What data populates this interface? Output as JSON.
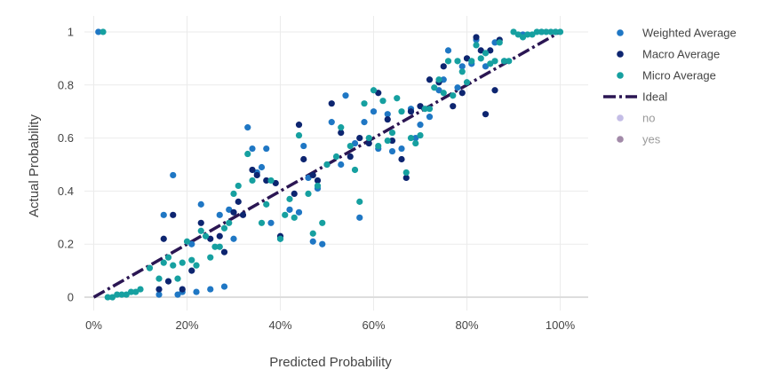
{
  "chart_data": {
    "type": "scatter",
    "xlabel": "Predicted Probability",
    "ylabel": "Actual Probability",
    "xlim": [
      -0.02,
      1.06
    ],
    "ylim": [
      -0.05,
      1.06
    ],
    "x_ticks": [
      0,
      0.2,
      0.4,
      0.6,
      0.8,
      1.0
    ],
    "x_tick_labels": [
      "0%",
      "20%",
      "40%",
      "60%",
      "80%",
      "100%"
    ],
    "y_ticks": [
      0,
      0.2,
      0.4,
      0.6,
      0.8,
      1.0
    ],
    "y_tick_labels": [
      "0",
      "0.2",
      "0.4",
      "0.6",
      "0.8",
      "1"
    ],
    "grid": true,
    "legend_position": "right",
    "series": [
      {
        "name": "Weighted Average",
        "color": "#1f77c4",
        "points": [
          [
            0.01,
            1.0
          ],
          [
            0.14,
            0.01
          ],
          [
            0.15,
            0.31
          ],
          [
            0.17,
            0.46
          ],
          [
            0.18,
            0.01
          ],
          [
            0.19,
            0.02
          ],
          [
            0.21,
            0.2
          ],
          [
            0.22,
            0.02
          ],
          [
            0.23,
            0.35
          ],
          [
            0.25,
            0.03
          ],
          [
            0.27,
            0.31
          ],
          [
            0.28,
            0.04
          ],
          [
            0.29,
            0.33
          ],
          [
            0.3,
            0.22
          ],
          [
            0.33,
            0.64
          ],
          [
            0.34,
            0.56
          ],
          [
            0.35,
            0.47
          ],
          [
            0.36,
            0.49
          ],
          [
            0.37,
            0.56
          ],
          [
            0.38,
            0.28
          ],
          [
            0.4,
            0.22
          ],
          [
            0.42,
            0.33
          ],
          [
            0.44,
            0.32
          ],
          [
            0.45,
            0.57
          ],
          [
            0.46,
            0.45
          ],
          [
            0.47,
            0.21
          ],
          [
            0.48,
            0.41
          ],
          [
            0.49,
            0.2
          ],
          [
            0.51,
            0.66
          ],
          [
            0.53,
            0.5
          ],
          [
            0.54,
            0.76
          ],
          [
            0.56,
            0.58
          ],
          [
            0.57,
            0.3
          ],
          [
            0.58,
            0.66
          ],
          [
            0.6,
            0.7
          ],
          [
            0.61,
            0.56
          ],
          [
            0.63,
            0.69
          ],
          [
            0.64,
            0.55
          ],
          [
            0.66,
            0.56
          ],
          [
            0.68,
            0.71
          ],
          [
            0.69,
            0.6
          ],
          [
            0.7,
            0.65
          ],
          [
            0.72,
            0.68
          ],
          [
            0.74,
            0.78
          ],
          [
            0.75,
            0.82
          ],
          [
            0.76,
            0.93
          ],
          [
            0.78,
            0.79
          ],
          [
            0.79,
            0.87
          ],
          [
            0.81,
            0.88
          ],
          [
            0.82,
            0.97
          ],
          [
            0.84,
            0.87
          ],
          [
            0.86,
            0.96
          ],
          [
            0.88,
            0.89
          ],
          [
            0.92,
            0.99
          ],
          [
            0.96,
            1.0
          ],
          [
            0.99,
            1.0
          ]
        ]
      },
      {
        "name": "Macro Average",
        "color": "#0d2570",
        "points": [
          [
            0.14,
            0.03
          ],
          [
            0.15,
            0.22
          ],
          [
            0.16,
            0.06
          ],
          [
            0.17,
            0.31
          ],
          [
            0.19,
            0.03
          ],
          [
            0.21,
            0.1
          ],
          [
            0.23,
            0.28
          ],
          [
            0.25,
            0.22
          ],
          [
            0.27,
            0.23
          ],
          [
            0.28,
            0.17
          ],
          [
            0.3,
            0.32
          ],
          [
            0.31,
            0.36
          ],
          [
            0.32,
            0.31
          ],
          [
            0.34,
            0.48
          ],
          [
            0.35,
            0.46
          ],
          [
            0.37,
            0.44
          ],
          [
            0.39,
            0.43
          ],
          [
            0.4,
            0.23
          ],
          [
            0.43,
            0.39
          ],
          [
            0.44,
            0.65
          ],
          [
            0.45,
            0.52
          ],
          [
            0.47,
            0.46
          ],
          [
            0.48,
            0.44
          ],
          [
            0.5,
            0.5
          ],
          [
            0.51,
            0.73
          ],
          [
            0.53,
            0.62
          ],
          [
            0.55,
            0.53
          ],
          [
            0.57,
            0.6
          ],
          [
            0.59,
            0.58
          ],
          [
            0.61,
            0.77
          ],
          [
            0.63,
            0.67
          ],
          [
            0.64,
            0.59
          ],
          [
            0.66,
            0.52
          ],
          [
            0.67,
            0.45
          ],
          [
            0.68,
            0.7
          ],
          [
            0.7,
            0.72
          ],
          [
            0.72,
            0.82
          ],
          [
            0.74,
            0.81
          ],
          [
            0.75,
            0.87
          ],
          [
            0.77,
            0.72
          ],
          [
            0.79,
            0.77
          ],
          [
            0.8,
            0.9
          ],
          [
            0.82,
            0.98
          ],
          [
            0.83,
            0.93
          ],
          [
            0.84,
            0.69
          ],
          [
            0.85,
            0.93
          ],
          [
            0.86,
            0.78
          ],
          [
            0.87,
            0.97
          ]
        ]
      },
      {
        "name": "Micro Average",
        "color": "#16a0a0",
        "points": [
          [
            0.02,
            1.0
          ],
          [
            0.03,
            0.0
          ],
          [
            0.04,
            0.0
          ],
          [
            0.05,
            0.01
          ],
          [
            0.06,
            0.01
          ],
          [
            0.07,
            0.01
          ],
          [
            0.08,
            0.02
          ],
          [
            0.09,
            0.02
          ],
          [
            0.1,
            0.03
          ],
          [
            0.12,
            0.11
          ],
          [
            0.14,
            0.07
          ],
          [
            0.15,
            0.13
          ],
          [
            0.16,
            0.15
          ],
          [
            0.17,
            0.12
          ],
          [
            0.18,
            0.07
          ],
          [
            0.19,
            0.13
          ],
          [
            0.2,
            0.21
          ],
          [
            0.21,
            0.14
          ],
          [
            0.22,
            0.12
          ],
          [
            0.23,
            0.25
          ],
          [
            0.24,
            0.23
          ],
          [
            0.25,
            0.15
          ],
          [
            0.26,
            0.19
          ],
          [
            0.27,
            0.19
          ],
          [
            0.28,
            0.26
          ],
          [
            0.29,
            0.28
          ],
          [
            0.3,
            0.39
          ],
          [
            0.31,
            0.42
          ],
          [
            0.33,
            0.54
          ],
          [
            0.34,
            0.44
          ],
          [
            0.36,
            0.28
          ],
          [
            0.37,
            0.35
          ],
          [
            0.38,
            0.44
          ],
          [
            0.4,
            0.22
          ],
          [
            0.41,
            0.31
          ],
          [
            0.42,
            0.37
          ],
          [
            0.43,
            0.3
          ],
          [
            0.44,
            0.61
          ],
          [
            0.46,
            0.39
          ],
          [
            0.47,
            0.24
          ],
          [
            0.48,
            0.42
          ],
          [
            0.49,
            0.28
          ],
          [
            0.5,
            0.5
          ],
          [
            0.52,
            0.53
          ],
          [
            0.53,
            0.64
          ],
          [
            0.55,
            0.57
          ],
          [
            0.56,
            0.48
          ],
          [
            0.57,
            0.36
          ],
          [
            0.58,
            0.73
          ],
          [
            0.59,
            0.6
          ],
          [
            0.6,
            0.78
          ],
          [
            0.61,
            0.57
          ],
          [
            0.62,
            0.74
          ],
          [
            0.63,
            0.59
          ],
          [
            0.64,
            0.62
          ],
          [
            0.65,
            0.75
          ],
          [
            0.66,
            0.7
          ],
          [
            0.67,
            0.47
          ],
          [
            0.68,
            0.6
          ],
          [
            0.69,
            0.58
          ],
          [
            0.7,
            0.61
          ],
          [
            0.71,
            0.71
          ],
          [
            0.72,
            0.71
          ],
          [
            0.73,
            0.79
          ],
          [
            0.74,
            0.82
          ],
          [
            0.75,
            0.77
          ],
          [
            0.76,
            0.89
          ],
          [
            0.77,
            0.76
          ],
          [
            0.78,
            0.89
          ],
          [
            0.79,
            0.85
          ],
          [
            0.8,
            0.81
          ],
          [
            0.81,
            0.89
          ],
          [
            0.82,
            0.95
          ],
          [
            0.83,
            0.9
          ],
          [
            0.84,
            0.92
          ],
          [
            0.85,
            0.88
          ],
          [
            0.86,
            0.89
          ],
          [
            0.87,
            0.96
          ],
          [
            0.88,
            0.89
          ],
          [
            0.89,
            0.89
          ],
          [
            0.9,
            1.0
          ],
          [
            0.91,
            0.99
          ],
          [
            0.92,
            0.98
          ],
          [
            0.93,
            0.99
          ],
          [
            0.94,
            0.99
          ],
          [
            0.95,
            1.0
          ],
          [
            0.96,
            1.0
          ],
          [
            0.97,
            1.0
          ],
          [
            0.98,
            1.0
          ],
          [
            0.99,
            1.0
          ],
          [
            1.0,
            1.0
          ]
        ]
      },
      {
        "name": "Ideal",
        "type": "line",
        "dash": "dashdot",
        "color": "#2b1653",
        "points": [
          [
            0,
            0
          ],
          [
            1.0,
            1.0
          ]
        ]
      },
      {
        "name": "no",
        "color": "#c4bde6",
        "legend_only": true,
        "points": []
      },
      {
        "name": "yes",
        "color": "#a28aa8",
        "legend_only": true,
        "points": []
      }
    ]
  }
}
